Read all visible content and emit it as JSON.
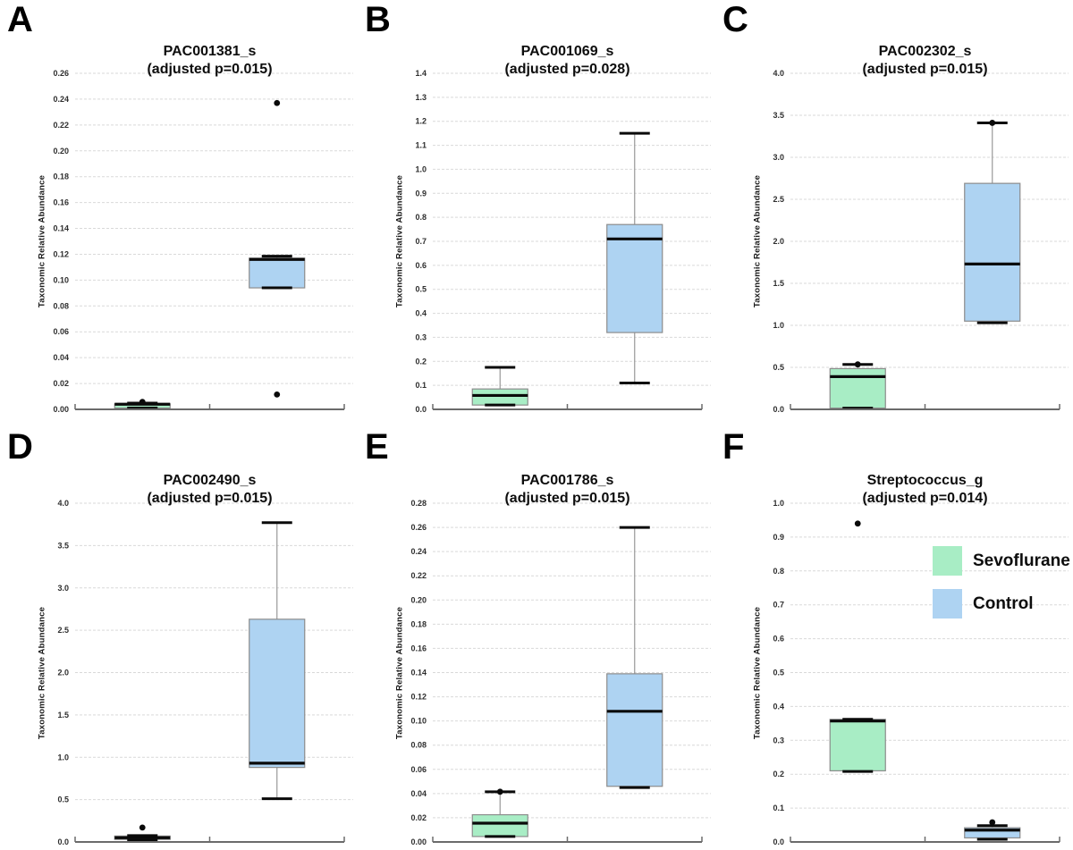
{
  "figure": {
    "ylabel": "Taxonomic Relative Abundance",
    "legend": [
      {
        "label": "Sevoflurane",
        "color": "#a8edc5"
      },
      {
        "label": "Control",
        "color": "#aed3f2"
      }
    ],
    "style": {
      "gridline_color": "#d9d9d9",
      "axis_color": "#6b6b6b",
      "box_border_color": "#8c8c8c",
      "whisker_color": "#999999",
      "median_color": "#0a0a0a"
    }
  },
  "chart_data": [
    {
      "type": "box",
      "panel_letter": "A",
      "title": "PAC001381_s",
      "subtitle": "(adjusted p=0.015)",
      "ylabel": "Taxonomic Relative Abundance",
      "ylim": [
        0,
        0.26
      ],
      "ytick_step": 0.02,
      "ytick_decimals": 2,
      "grid": true,
      "categories": [
        "Sevoflurane",
        "Control"
      ],
      "groups": [
        {
          "name": "Sevoflurane",
          "q1": 0.001,
          "median": 0.004,
          "q3": 0.0042,
          "whisker_low": 0.001,
          "whisker_high": 0.0048,
          "outliers": [
            0.0058
          ]
        },
        {
          "name": "Control",
          "q1": 0.094,
          "median": 0.116,
          "q3": 0.117,
          "whisker_low": 0.094,
          "whisker_high": 0.1185,
          "outliers": [
            0.237,
            0.0115
          ]
        }
      ]
    },
    {
      "type": "box",
      "panel_letter": "B",
      "title": "PAC001069_s",
      "subtitle": "(adjusted p=0.028)",
      "ylabel": "Taxonomic Relative Abundance",
      "ylim": [
        0,
        1.4
      ],
      "ytick_step": 0.1,
      "ytick_decimals": 1,
      "grid": true,
      "categories": [
        "Sevoflurane",
        "Control"
      ],
      "groups": [
        {
          "name": "Sevoflurane",
          "q1": 0.018,
          "median": 0.058,
          "q3": 0.085,
          "whisker_low": 0.018,
          "whisker_high": 0.175,
          "outliers": []
        },
        {
          "name": "Control",
          "q1": 0.32,
          "median": 0.71,
          "q3": 0.77,
          "whisker_low": 0.11,
          "whisker_high": 1.15,
          "outliers": []
        }
      ]
    },
    {
      "type": "box",
      "panel_letter": "C",
      "title": "PAC002302_s",
      "subtitle": "(adjusted p=0.015)",
      "ylabel": "Taxonomic Relative Abundance",
      "ylim": [
        0,
        4.0
      ],
      "ytick_step": 0.5,
      "ytick_decimals": 1,
      "grid": true,
      "categories": [
        "Sevoflurane",
        "Control"
      ],
      "groups": [
        {
          "name": "Sevoflurane",
          "q1": 0.015,
          "median": 0.39,
          "q3": 0.485,
          "whisker_low": 0.015,
          "whisker_high": 0.535,
          "outliers": [
            0.535
          ]
        },
        {
          "name": "Control",
          "q1": 1.05,
          "median": 1.73,
          "q3": 2.69,
          "whisker_low": 1.03,
          "whisker_high": 3.41,
          "outliers": [
            3.41
          ]
        }
      ]
    },
    {
      "type": "box",
      "panel_letter": "D",
      "title": "PAC002490_s",
      "subtitle": "(adjusted p=0.015)",
      "ylabel": "Taxonomic Relative Abundance",
      "ylim": [
        0,
        4.0
      ],
      "ytick_step": 0.5,
      "ytick_decimals": 1,
      "grid": true,
      "categories": [
        "Sevoflurane",
        "Control"
      ],
      "groups": [
        {
          "name": "Sevoflurane",
          "q1": 0.03,
          "median": 0.05,
          "q3": 0.07,
          "whisker_low": 0.02,
          "whisker_high": 0.075,
          "outliers": [
            0.17
          ]
        },
        {
          "name": "Control",
          "q1": 0.88,
          "median": 0.93,
          "q3": 2.63,
          "whisker_low": 0.51,
          "whisker_high": 3.77,
          "outliers": []
        }
      ]
    },
    {
      "type": "box",
      "panel_letter": "E",
      "title": "PAC001786_s",
      "subtitle": "(adjusted p=0.015)",
      "ylabel": "Taxonomic Relative Abundance",
      "ylim": [
        0,
        0.28
      ],
      "ytick_step": 0.02,
      "ytick_decimals": 2,
      "grid": true,
      "categories": [
        "Sevoflurane",
        "Control"
      ],
      "groups": [
        {
          "name": "Sevoflurane",
          "q1": 0.0045,
          "median": 0.0155,
          "q3": 0.0225,
          "whisker_low": 0.0045,
          "whisker_high": 0.0415,
          "outliers": [
            0.0415
          ]
        },
        {
          "name": "Control",
          "q1": 0.046,
          "median": 0.108,
          "q3": 0.139,
          "whisker_low": 0.045,
          "whisker_high": 0.26,
          "outliers": []
        }
      ]
    },
    {
      "type": "box",
      "panel_letter": "F",
      "title": "Streptococcus_g",
      "subtitle": "(adjusted p=0.014)",
      "ylabel": "Taxonomic Relative Abundance",
      "ylim": [
        0,
        1.0
      ],
      "ytick_step": 0.1,
      "ytick_decimals": 1,
      "grid": true,
      "categories": [
        "Sevoflurane",
        "Control"
      ],
      "groups": [
        {
          "name": "Sevoflurane",
          "q1": 0.21,
          "median": 0.357,
          "q3": 0.362,
          "whisker_low": 0.208,
          "whisker_high": 0.362,
          "outliers": [
            0.94
          ]
        },
        {
          "name": "Control",
          "q1": 0.012,
          "median": 0.035,
          "q3": 0.042,
          "whisker_low": 0.008,
          "whisker_high": 0.048,
          "outliers": [
            0.058
          ]
        }
      ]
    }
  ]
}
